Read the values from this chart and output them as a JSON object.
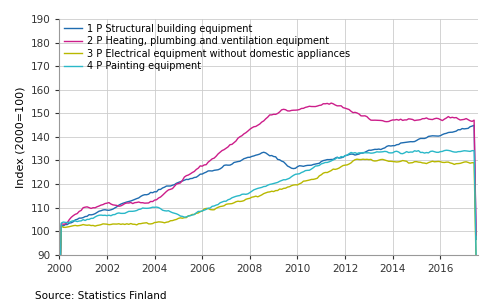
{
  "title": "",
  "ylabel": "Index (2000=100)",
  "xlabel": "",
  "source": "Source: Statistics Finland",
  "ylim": [
    90,
    190
  ],
  "yticks": [
    90,
    100,
    110,
    120,
    130,
    140,
    150,
    160,
    170,
    180,
    190
  ],
  "xlim_start": 2000.0,
  "xlim_end": 2017.58,
  "xtick_years": [
    2000,
    2002,
    2004,
    2006,
    2008,
    2010,
    2012,
    2014,
    2016
  ],
  "series": {
    "1P": {
      "label": "1 P Structural building equipment",
      "color": "#1f6cb0",
      "linewidth": 1.0
    },
    "2P": {
      "label": "2 P Heating, plumbing and ventilation equipment",
      "color": "#cc1e8a",
      "linewidth": 1.0
    },
    "3P": {
      "label": "3 P Electrical equipment without domestic appliances",
      "color": "#b8b800",
      "linewidth": 1.0
    },
    "4P": {
      "label": "4 P Painting equipment",
      "color": "#2ab8c8",
      "linewidth": 1.0
    }
  },
  "legend_fontsize": 7.0,
  "tick_fontsize": 7.5,
  "label_fontsize": 8,
  "source_fontsize": 7.5,
  "grid_color": "#cccccc",
  "background_color": "#ffffff"
}
